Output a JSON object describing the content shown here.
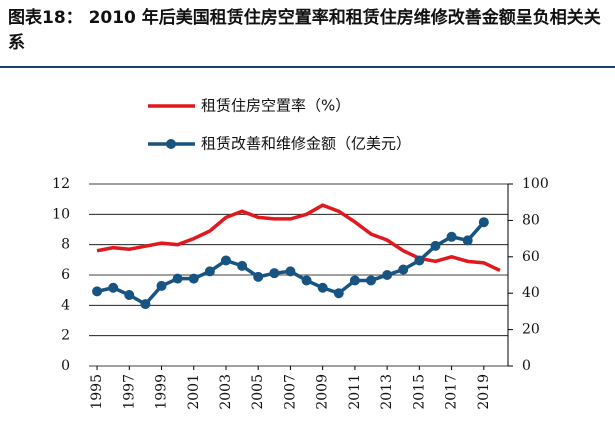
{
  "chart_data": {
    "type": "line",
    "title": "图表18：  2010 年后美国租赁住房空置率和租赁住房维修改善金额呈负相关关系",
    "x": [
      1995,
      1996,
      1997,
      1998,
      1999,
      2000,
      2001,
      2002,
      2003,
      2004,
      2005,
      2006,
      2007,
      2008,
      2009,
      2010,
      2011,
      2012,
      2013,
      2014,
      2015,
      2016,
      2017,
      2018,
      2019,
      2020
    ],
    "xlim": [
      1994.5,
      2020.5
    ],
    "xticks": [
      1995,
      1997,
      1999,
      2001,
      2003,
      2005,
      2007,
      2009,
      2011,
      2013,
      2015,
      2017,
      2019
    ],
    "ylim": [
      0,
      12
    ],
    "yticks": [
      0,
      2,
      4,
      6,
      8,
      10,
      12
    ],
    "y2lim": [
      0,
      100
    ],
    "y2ticks": [
      0,
      20,
      40,
      60,
      80,
      100
    ],
    "grid": true,
    "series": [
      {
        "name": "租赁住房空置率（%）",
        "color": "#e0191e",
        "values": [
          7.6,
          7.8,
          7.7,
          7.9,
          8.1,
          8.0,
          8.4,
          8.9,
          9.8,
          10.2,
          9.8,
          9.7,
          9.7,
          10.0,
          10.6,
          10.2,
          9.5,
          8.7,
          8.3,
          7.6,
          7.1,
          6.9,
          7.2,
          6.9,
          6.8,
          6.3
        ]
      },
      {
        "name": "租赁改善和维修金额（亿美元）",
        "color": "#175482",
        "axis": "y2",
        "markers": true,
        "values": [
          41,
          43,
          39,
          34,
          44,
          48,
          48,
          52,
          58,
          55,
          49,
          51,
          52,
          47,
          43,
          40,
          47,
          47,
          50,
          53,
          58,
          66,
          71,
          69,
          79,
          null
        ]
      }
    ]
  }
}
